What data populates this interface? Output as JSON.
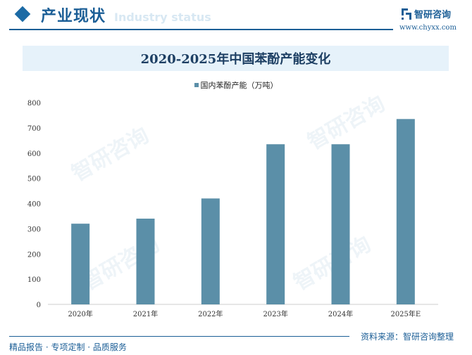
{
  "header": {
    "section_title": "产业现状",
    "section_subtitle": "Industry status",
    "logo_text": "智研咨询",
    "website": "www.chyxx.com"
  },
  "footer": {
    "slogan": "精品报告 · 专项定制 · 品质服务",
    "source": "资料来源：智研咨询整理"
  },
  "watermark": "智研咨询",
  "colors": {
    "bar": "#5b8fa8",
    "brand": "#1b5e96",
    "title_band": "#e6f2fa"
  },
  "chart_data": {
    "type": "bar",
    "title": "2020-2025年中国苯酚产能变化",
    "categories": [
      "2020年",
      "2021年",
      "2022年",
      "2023年",
      "2024年",
      "2025年E"
    ],
    "series": [
      {
        "name": "国内苯酚产能（万吨）",
        "values": [
          320,
          340,
          420,
          635,
          635,
          735
        ]
      }
    ],
    "ylim": [
      0,
      800
    ],
    "yticks": [
      0,
      100,
      200,
      300,
      400,
      500,
      600,
      700,
      800
    ],
    "grid": false,
    "legend": "top-center"
  }
}
